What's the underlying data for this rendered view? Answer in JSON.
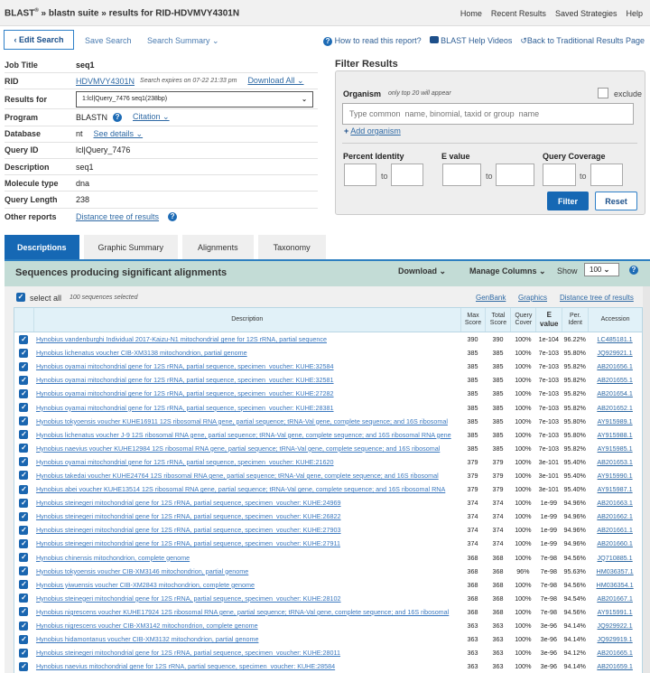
{
  "header": {
    "brand": "BLAST",
    "brand_sup": "®",
    "crumb": " » blastn suite » results for RID-HDVMVY4301N",
    "nav": [
      "Home",
      "Recent Results",
      "Saved Strategies",
      "Help"
    ]
  },
  "toolbar": {
    "edit": "‹ Edit Search",
    "save": "Save Search",
    "summary": "Search Summary ⌄",
    "howto": "How to read this report?",
    "videos": "BLAST Help Videos",
    "back": "Back to Traditional Results Page"
  },
  "info": {
    "job_title_label": "Job Title",
    "job_title": "seq1",
    "rid_label": "RID",
    "rid": "HDVMVY4301N",
    "expires": "Search expires on 07-22 21:33 pm",
    "download_all": "Download All ⌄",
    "results_for_label": "Results for",
    "results_for": "1:lcl|Query_7476 seq1(238bp)",
    "program_label": "Program",
    "program": "BLASTN",
    "citation": "Citation ⌄",
    "database_label": "Database",
    "database": "nt",
    "see_details": "See details ⌄",
    "query_id_label": "Query ID",
    "query_id": "lcl|Query_7476",
    "description_label": "Description",
    "description": "seq1",
    "molecule_label": "Molecule type",
    "molecule": "dna",
    "length_label": "Query Length",
    "length": "238",
    "other_label": "Other reports",
    "other": "Distance tree of results"
  },
  "filter": {
    "title": "Filter Results",
    "organism": "Organism",
    "organism_note": "only top 20 will appear",
    "exclude": "exclude",
    "placeholder": "Type common  name, binomial, taxid or group  name",
    "add": "Add organism",
    "pi": "Percent Identity",
    "ev": "E value",
    "qc": "Query Coverage",
    "to": "to",
    "filter_btn": "Filter",
    "reset_btn": "Reset"
  },
  "tabs": [
    "Descriptions",
    "Graphic Summary",
    "Alignments",
    "Taxonomy"
  ],
  "results": {
    "title": "Sequences producing significant alignments",
    "download": "Download ⌄",
    "manage": "Manage Columns ⌄",
    "show": "Show",
    "show_value": "100",
    "select_all": "select all",
    "selected": "100 sequences selected",
    "links": [
      "GenBank",
      "Graphics",
      "Distance tree of results"
    ],
    "columns": [
      "Description",
      "Max Score",
      "Total Score",
      "Query Cover",
      "E value",
      "Per. Ident",
      "Accession"
    ],
    "rows": [
      [
        "Hynobius vandenburghi Individual 2017-Kaizu-N1 mitochondrial gene for 12S rRNA, partial sequence",
        "390",
        "390",
        "100%",
        "1e-104",
        "96.22%",
        "LC485181.1"
      ],
      [
        "Hynobius lichenatus voucher CIB-XM3138 mitochondrion, partial genome",
        "385",
        "385",
        "100%",
        "7e-103",
        "95.80%",
        "JQ929921.1"
      ],
      [
        "Hynobius oyamai mitochondrial gene for 12S rRNA, partial sequence, specimen_voucher: KUHE:32584",
        "385",
        "385",
        "100%",
        "7e-103",
        "95.82%",
        "AB201656.1"
      ],
      [
        "Hynobius oyamai mitochondrial gene for 12S rRNA, partial sequence, specimen_voucher: KUHE:32581",
        "385",
        "385",
        "100%",
        "7e-103",
        "95.82%",
        "AB201655.1"
      ],
      [
        "Hynobius oyamai mitochondrial gene for 12S rRNA, partial sequence, specimen_voucher: KUHE:27282",
        "385",
        "385",
        "100%",
        "7e-103",
        "95.82%",
        "AB201654.1"
      ],
      [
        "Hynobius oyamai mitochondrial gene for 12S rRNA, partial sequence, specimen_voucher: KUHE:28381",
        "385",
        "385",
        "100%",
        "7e-103",
        "95.82%",
        "AB201652.1"
      ],
      [
        "Hynobius tokyoensis voucher KUHE16911 12S ribosomal RNA gene, partial sequence; tRNA-Val gene, complete sequence; and 16S ribosomal",
        "385",
        "385",
        "100%",
        "7e-103",
        "95.80%",
        "AY915989.1"
      ],
      [
        "Hynobius lichenatus voucher J-9 12S ribosomal RNA gene, partial sequence; tRNA-Val gene, complete sequence; and 16S ribosomal RNA gene",
        "385",
        "385",
        "100%",
        "7e-103",
        "95.80%",
        "AY915988.1"
      ],
      [
        "Hynobius naevius voucher KUHE12984 12S ribosomal RNA gene, partial sequence; tRNA-Val gene, complete sequence; and 16S ribosomal",
        "385",
        "385",
        "100%",
        "7e-103",
        "95.82%",
        "AY915985.1"
      ],
      [
        "Hynobius oyamai mitochondrial gene for 12S rRNA, partial sequence, specimen_voucher: KUHE:21620",
        "379",
        "379",
        "100%",
        "3e-101",
        "95.40%",
        "AB201653.1"
      ],
      [
        "Hynobius takedai voucher KUHE24764 12S ribosomal RNA gene, partial sequence; tRNA-Val gene, complete sequence; and 16S ribosomal",
        "379",
        "379",
        "100%",
        "3e-101",
        "95.40%",
        "AY915990.1"
      ],
      [
        "Hynobius abei voucher KUHE13514 12S ribosomal RNA gene, partial sequence; tRNA-Val gene, complete sequence; and 16S ribosomal RNA",
        "379",
        "379",
        "100%",
        "3e-101",
        "95.40%",
        "AY915987.1"
      ],
      [
        "Hynobius steinegeri mitochondrial gene for 12S rRNA, partial sequence, specimen_voucher: KUHE:24969",
        "374",
        "374",
        "100%",
        "1e-99",
        "94.96%",
        "AB201663.1"
      ],
      [
        "Hynobius steinegeri mitochondrial gene for 12S rRNA, partial sequence, specimen_voucher: KUHE:26822",
        "374",
        "374",
        "100%",
        "1e-99",
        "94.96%",
        "AB201662.1"
      ],
      [
        "Hynobius steinegeri mitochondrial gene for 12S rRNA, partial sequence, specimen_voucher: KUHE:27903",
        "374",
        "374",
        "100%",
        "1e-99",
        "94.96%",
        "AB201661.1"
      ],
      [
        "Hynobius steinegeri mitochondrial gene for 12S rRNA, partial sequence, specimen_voucher: KUHE:27911",
        "374",
        "374",
        "100%",
        "1e-99",
        "94.96%",
        "AB201660.1"
      ],
      [
        "Hynobius chinensis mitochondrion, complete genome",
        "368",
        "368",
        "100%",
        "7e-98",
        "94.56%",
        "JQ710885.1"
      ],
      [
        "Hynobius tokyoensis voucher CIB-XM3146 mitochondrion, partial genome",
        "368",
        "368",
        "96%",
        "7e-98",
        "95.63%",
        "HM036357.1"
      ],
      [
        "Hynobius yiwuensis voucher CIB-XM2843 mitochondrion, complete genome",
        "368",
        "368",
        "100%",
        "7e-98",
        "94.56%",
        "HM036354.1"
      ],
      [
        "Hynobius steinegeri mitochondrial gene for 12S rRNA, partial sequence, specimen_voucher: KUHE:28102",
        "368",
        "368",
        "100%",
        "7e-98",
        "94.54%",
        "AB201667.1"
      ],
      [
        "Hynobius nigrescens voucher KUHE17924 12S ribosomal RNA gene, partial sequence; tRNA-Val gene, complete sequence; and 16S ribosomal",
        "368",
        "368",
        "100%",
        "7e-98",
        "94.56%",
        "AY915991.1"
      ],
      [
        "Hynobius nigrescens voucher CIB-XM3142 mitochondrion, complete genome",
        "363",
        "363",
        "100%",
        "3e-96",
        "94.14%",
        "JQ929922.1"
      ],
      [
        "Hynobius hidamontanus voucher CIB-XM3132 mitochondrion, partial genome",
        "363",
        "363",
        "100%",
        "3e-96",
        "94.14%",
        "JQ929919.1"
      ],
      [
        "Hynobius steinegeri mitochondrial gene for 12S rRNA, partial sequence, specimen_voucher: KUHE:28011",
        "363",
        "363",
        "100%",
        "3e-96",
        "94.12%",
        "AB201665.1"
      ],
      [
        "Hynobius naevius mitochondrial gene for 12S rRNA, partial sequence, specimen_voucher: KUHE:28584",
        "363",
        "363",
        "100%",
        "3e-96",
        "94.14%",
        "AB201659.1"
      ]
    ]
  },
  "colors": {
    "accent": "#1668b4",
    "teal_bar": "#c3dcd6",
    "table_header": "#e1f1f8",
    "link": "#3a78bf"
  }
}
